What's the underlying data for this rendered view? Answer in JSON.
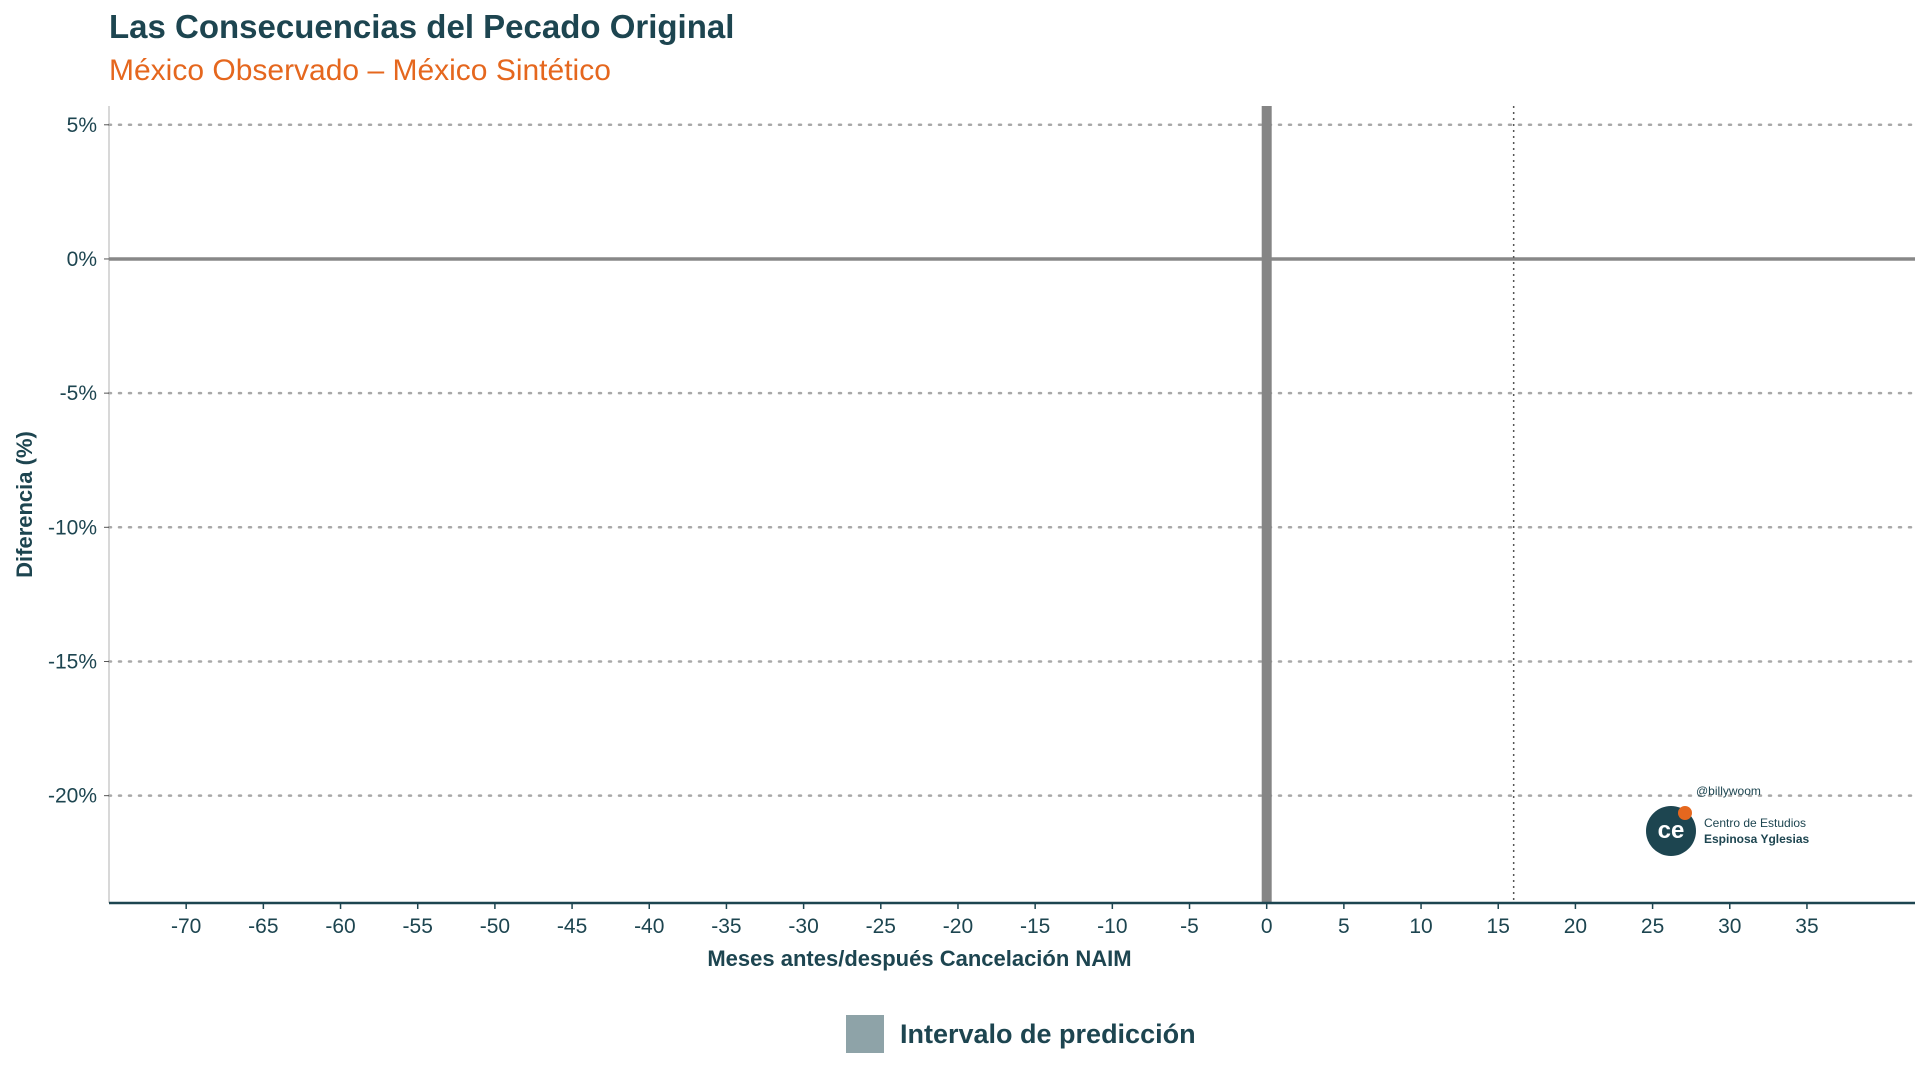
{
  "chart_data": {
    "type": "line",
    "title": "Las Consecuencias del Pecado Original",
    "subtitle": "México Observado – México Sintético",
    "xlabel": "Meses antes/después Cancelación NAIM",
    "ylabel": "Diferencia (%)",
    "xlim": [
      -75,
      42
    ],
    "ylim": [
      -24,
      5.7
    ],
    "x_ticks": [
      -70,
      -65,
      -60,
      -55,
      -50,
      -45,
      -40,
      -35,
      -30,
      -25,
      -20,
      -15,
      -10,
      -5,
      0,
      5,
      10,
      15,
      20,
      25,
      30,
      35
    ],
    "y_ticks": [
      5,
      0,
      -5,
      -10,
      -15,
      -20
    ],
    "y_tick_labels": [
      "5%",
      "0%",
      "-5%",
      "-10%",
      "-15%",
      "-20%"
    ],
    "grid": "horizontal dotted",
    "reference_lines": [
      {
        "axis": "y",
        "value": 0,
        "style": "solid"
      },
      {
        "axis": "x",
        "value": 0,
        "style": "thick-solid"
      },
      {
        "axis": "x",
        "value": 16,
        "style": "dotted"
      }
    ],
    "legend": {
      "placement": "bottom",
      "entries": [
        "Intervalo de predicción"
      ]
    },
    "series": []
  },
  "watermark": {
    "handle": "@billywoom",
    "logo_text": "ce",
    "org_line1": "Centro de Estudios",
    "org_line2": "Espinosa Yglesias"
  },
  "colors": {
    "title": "#1d4550",
    "subtitle": "#e5671e",
    "interval": "#8ea3a8",
    "reference": "#808080"
  }
}
